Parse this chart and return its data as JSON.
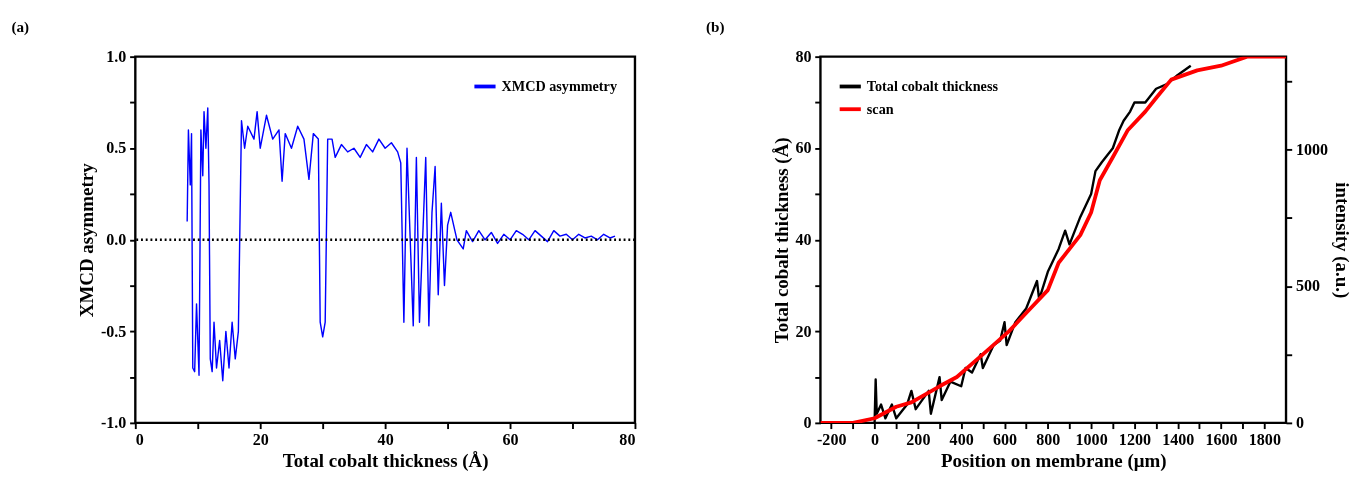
{
  "chart_data": [
    {
      "type": "line",
      "title": "(a)",
      "xlabel": "Total cobalt thickness (Å)",
      "ylabel": "XMCD asymmetry",
      "xlim": [
        0,
        80
      ],
      "xticks": [
        0,
        {
          "value": 10,
          "label": null
        },
        20,
        {
          "value": 30,
          "label": null
        },
        40,
        {
          "value": 50,
          "label": null
        },
        60,
        {
          "value": 70,
          "label": null
        },
        80
      ],
      "ylim": [
        -1,
        1
      ],
      "yticks": [
        {
          "value": -1,
          "label": "-1.0"
        },
        {
          "value": -0.75,
          "label": null
        },
        {
          "value": -0.5,
          "label": "-0.5"
        },
        {
          "value": -0.25,
          "label": null
        },
        {
          "value": 0,
          "label": "0.0"
        },
        {
          "value": 0.25,
          "label": null
        },
        {
          "value": 0.5,
          "label": "0.5"
        },
        {
          "value": 0.75,
          "label": null
        },
        {
          "value": 1,
          "label": "1.0"
        }
      ],
      "grid": false,
      "legend": "top right",
      "marker": "none",
      "line_style": "solid",
      "ref_lines": [
        {
          "axis": "y",
          "value": 0,
          "color": "#000000",
          "line_style": "dotted"
        }
      ],
      "series": [
        {
          "name": "XMCD asymmetry",
          "color": "#0000ff",
          "x": [
            8.3,
            8.5,
            8.8,
            9.0,
            9.2,
            9.5,
            9.8,
            10.2,
            10.5,
            10.8,
            11.0,
            11.3,
            11.6,
            11.8,
            12.0,
            12.3,
            12.6,
            13,
            13.5,
            14,
            14.5,
            15,
            15.5,
            16,
            16.5,
            16.8,
            17,
            17.5,
            18,
            19,
            19.5,
            20,
            21,
            22,
            23,
            23.5,
            24,
            25,
            26,
            27,
            27.8,
            28.5,
            29.3,
            29.6,
            30,
            30.4,
            30.8,
            31.5,
            32,
            33,
            34,
            35,
            36,
            37,
            38,
            39,
            40,
            41,
            42,
            42.5,
            43,
            43.5,
            44.5,
            45,
            45.5,
            46.5,
            47,
            47.5,
            48,
            48.5,
            49,
            49.5,
            50,
            50.5,
            51.5,
            52.5,
            53,
            54,
            55,
            56,
            57,
            58,
            59,
            60,
            61,
            62,
            63,
            64,
            65,
            66,
            67,
            68,
            69,
            70,
            71,
            72,
            73,
            74,
            75,
            76,
            76.8
          ],
          "values": [
            0.1,
            0.6,
            0.3,
            0.58,
            -0.7,
            -0.72,
            -0.35,
            -0.74,
            0.6,
            0.35,
            0.7,
            0.5,
            0.72,
            0.3,
            -0.65,
            -0.72,
            -0.45,
            -0.7,
            -0.55,
            -0.77,
            -0.5,
            -0.7,
            -0.45,
            -0.65,
            -0.5,
            0.2,
            0.65,
            0.5,
            0.62,
            0.55,
            0.7,
            0.5,
            0.68,
            0.55,
            0.6,
            0.32,
            0.58,
            0.5,
            0.62,
            0.55,
            0.33,
            0.58,
            0.55,
            -0.45,
            -0.53,
            -0.45,
            0.55,
            0.55,
            0.45,
            0.52,
            0.48,
            0.5,
            0.45,
            0.52,
            0.48,
            0.55,
            0.5,
            0.53,
            0.48,
            0.42,
            -0.45,
            0.5,
            -0.47,
            0.45,
            -0.45,
            0.45,
            -0.47,
            0.15,
            0.4,
            -0.3,
            0.2,
            -0.25,
            0.08,
            0.15,
            0.0,
            -0.05,
            0.05,
            -0.01,
            0.05,
            0.0,
            0.04,
            -0.02,
            0.03,
            0.0,
            0.05,
            0.03,
            0.0,
            0.05,
            0.02,
            -0.01,
            0.05,
            0.02,
            0.03,
            0.0,
            0.03,
            0.01,
            0.02,
            0.0,
            0.03,
            0.01,
            0.02
          ]
        }
      ]
    },
    {
      "type": "line",
      "title": "(b)",
      "xlabel": "Position on membrane (μm)",
      "ylabel": "Total cobalt thickness (Å)",
      "y2label": "intensity (a.u.)",
      "xlim": [
        -250,
        1900
      ],
      "xticks": [
        -200,
        {
          "value": -100,
          "label": null
        },
        0,
        {
          "value": 100,
          "label": null
        },
        200,
        {
          "value": 300,
          "label": null
        },
        400,
        {
          "value": 500,
          "label": null
        },
        600,
        {
          "value": 700,
          "label": null
        },
        800,
        {
          "value": 900,
          "label": null
        },
        1000,
        {
          "value": 1100,
          "label": null
        },
        1200,
        {
          "value": 1300,
          "label": null
        },
        1400,
        {
          "value": 1500,
          "label": null
        },
        1600,
        {
          "value": 1700,
          "label": null
        },
        1800
      ],
      "ylim": [
        0,
        80
      ],
      "yticks": [
        0,
        {
          "value": 10,
          "label": null
        },
        20,
        {
          "value": 30,
          "label": null
        },
        40,
        {
          "value": 50,
          "label": null
        },
        60,
        {
          "value": 70,
          "label": null
        },
        80
      ],
      "y2lim": [
        0,
        1340
      ],
      "y2ticks": [
        0,
        {
          "value": 250,
          "label": null
        },
        500,
        {
          "value": 750,
          "label": null
        },
        1000,
        {
          "value": 1250,
          "label": null
        }
      ],
      "grid": false,
      "legend": "top left",
      "marker": "none",
      "line_style": "solid",
      "series": [
        {
          "name": "Total cobalt thickness",
          "color": "#000000",
          "x": [
            0,
            5,
            10,
            30,
            50,
            80,
            100,
            150,
            170,
            190,
            250,
            260,
            300,
            310,
            350,
            400,
            420,
            450,
            490,
            500,
            550,
            580,
            600,
            610,
            650,
            700,
            750,
            760,
            800,
            850,
            880,
            900,
            950,
            980,
            1000,
            1020,
            1050,
            1100,
            1130,
            1150,
            1180,
            1200,
            1250,
            1300,
            1350,
            1400,
            1460
          ],
          "values": [
            0,
            9.5,
            2,
            4,
            1,
            4,
            1,
            4,
            7,
            3,
            7,
            2,
            10,
            5,
            9,
            8,
            12,
            11,
            15,
            12,
            17,
            18,
            22,
            17,
            22,
            25,
            31,
            27,
            33,
            38,
            42,
            39,
            45,
            48,
            50,
            55,
            57,
            60,
            64,
            66,
            68,
            70,
            70,
            73,
            74,
            76,
            78
          ]
        },
        {
          "name": "scan",
          "color": "#ff0000",
          "axis": "y2",
          "x": [
            -250,
            -100,
            0,
            100,
            170,
            300,
            380,
            500,
            620,
            700,
            800,
            850,
            950,
            1000,
            1040,
            1100,
            1170,
            1250,
            1300,
            1370,
            1490,
            1600,
            1720,
            1900
          ],
          "values": [
            0,
            0,
            17,
            59,
            75,
            134,
            168,
            251,
            335,
            402,
            486,
            586,
            687,
            770,
            888,
            972,
            1072,
            1139,
            1189,
            1256,
            1290,
            1307,
            1340,
            1340
          ]
        }
      ]
    }
  ]
}
